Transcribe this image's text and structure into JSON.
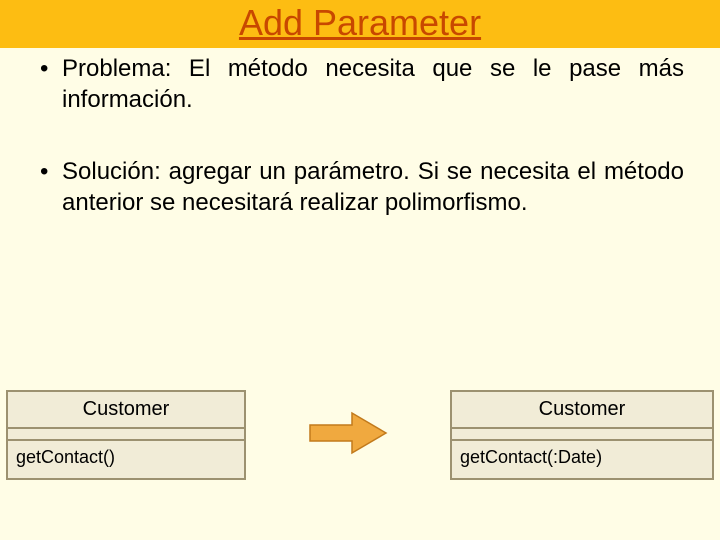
{
  "colors": {
    "slide_bg": "#fffde6",
    "title_bg": "#fdbd12",
    "title_fg": "#c84800",
    "uml_border": "#9c9170",
    "uml_bg": "#f1ecd7",
    "arrow_fill": "#f0a93f",
    "arrow_stroke": "#c27a1c"
  },
  "title": "Add Parameter",
  "bullets": {
    "problema": "Problema: El método necesita que se le pase más información.",
    "solucion": "Solución: agregar un parámetro. Si se necesita el método anterior se necesitará realizar polimorfismo."
  },
  "uml": {
    "left": {
      "name": "Customer",
      "method": "getContact()"
    },
    "right": {
      "name": "Customer",
      "method": "getContact(:Date)"
    }
  },
  "layout": {
    "title_fontsize": 36,
    "bullet_fontsize": 24,
    "uml_name_fontsize": 20,
    "uml_method_fontsize": 18,
    "uml_border_width": 2,
    "uml_left_width": 240,
    "uml_right_width": 264,
    "arrow_w": 80,
    "arrow_h": 44
  }
}
